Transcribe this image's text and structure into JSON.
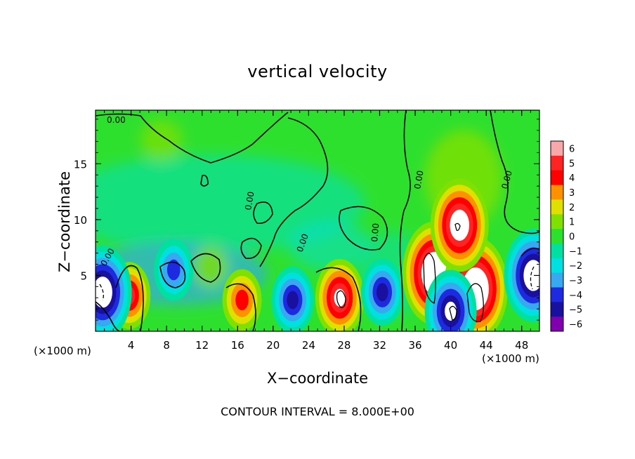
{
  "chart_data": {
    "type": "heatmap",
    "title": "vertical velocity",
    "xlabel": "X−coordinate",
    "ylabel": "Z−coordinate",
    "x_unit_label": "(×1000 m)",
    "x_ticks": [
      4,
      8,
      12,
      16,
      20,
      24,
      28,
      32,
      36,
      40,
      44,
      48
    ],
    "y_ticks": [
      5,
      10,
      15
    ],
    "xlim": [
      0,
      50
    ],
    "ylim": [
      0,
      19.8
    ],
    "colorbar": {
      "ticks": [
        6,
        5,
        4,
        3,
        2,
        1,
        0,
        -1,
        -2,
        -3,
        -4,
        -5,
        -6
      ],
      "tick_labels": [
        "6",
        "5",
        "4",
        "3",
        "2",
        "1",
        "0",
        "−1",
        "−2",
        "−3",
        "−4",
        "−5",
        "−6"
      ],
      "colors": [
        "#f8a8a8",
        "#ff2424",
        "#ff0000",
        "#ff9000",
        "#e0e000",
        "#80e000",
        "#2ee02e",
        "#00e0a0",
        "#00e0e0",
        "#38a8f0",
        "#1e2ae0",
        "#1a10a0",
        "#8000b0"
      ]
    },
    "contour_labels": [
      "0.00",
      "0.00",
      "0.00",
      "0.00",
      "0.00",
      "0.00",
      "0.00"
    ],
    "contour_interval_text": "CONTOUR INTERVAL = 8.000E+00",
    "features": [
      {
        "x": 38.2,
        "z": 5.2,
        "value": 8
      },
      {
        "x": 42.8,
        "z": 3.8,
        "value": 8
      },
      {
        "x": 41.0,
        "z": 9.5,
        "value": 7
      },
      {
        "x": 27.5,
        "z": 3.0,
        "value": 5.5
      },
      {
        "x": 3.8,
        "z": 3.2,
        "value": 4.5
      },
      {
        "x": 16.5,
        "z": 2.8,
        "value": 4
      },
      {
        "x": 22.2,
        "z": 2.8,
        "value": -4.5
      },
      {
        "x": 32.3,
        "z": 3.5,
        "value": -4.5
      },
      {
        "x": 40.0,
        "z": 1.8,
        "value": -6
      },
      {
        "x": 0.8,
        "z": 3.5,
        "value": -7
      },
      {
        "x": 49.3,
        "z": 5.0,
        "value": -7
      },
      {
        "x": 8.8,
        "z": 5.5,
        "value": -4
      }
    ]
  }
}
